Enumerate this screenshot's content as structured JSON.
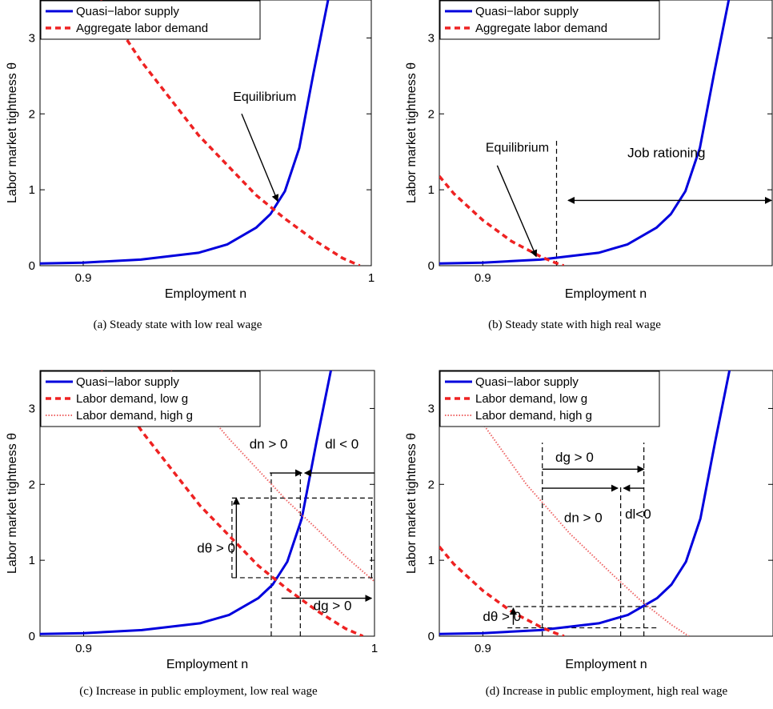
{
  "chart_data": [
    {
      "type": "line",
      "caption": "(a)  Steady state with low real wage",
      "xlabel": "Employment n",
      "ylabel": "Labor market tightness θ",
      "xlim": [
        0.885,
        1.0
      ],
      "ylim": [
        0,
        3.5
      ],
      "xticks": [
        {
          "v": 0.9,
          "label": "0.9"
        },
        {
          "v": 1.0,
          "label": "1"
        }
      ],
      "yticks": [
        0,
        1,
        2,
        3
      ],
      "legend_position": "top-left",
      "series": [
        {
          "name": "Quasi−labor supply",
          "style": "supply",
          "color": "#0000dd",
          "x": [
            0.885,
            0.9,
            0.92,
            0.94,
            0.95,
            0.96,
            0.965,
            0.97,
            0.975,
            0.98,
            0.985
          ],
          "y": [
            0.03,
            0.04,
            0.08,
            0.17,
            0.28,
            0.5,
            0.68,
            0.98,
            1.55,
            2.55,
            3.5
          ]
        },
        {
          "name": "Aggregate labor demand",
          "style": "dashed",
          "color": "#ee2222",
          "x": [
            0.906,
            0.92,
            0.94,
            0.96,
            0.97,
            0.98,
            0.99,
            0.996
          ],
          "y": [
            3.5,
            2.7,
            1.72,
            0.93,
            0.62,
            0.34,
            0.1,
            0.0
          ]
        }
      ],
      "annotations": [
        {
          "text": "Equilibrium",
          "tx": 0.952,
          "ty": 2.17,
          "arrow": {
            "x1": 0.955,
            "y1": 2.0,
            "x2": 0.9675,
            "y2": 0.85
          }
        }
      ]
    },
    {
      "type": "line",
      "caption": "(b)  Steady state with high real wage",
      "xlabel": "Employment n",
      "ylabel": "Labor market tightness θ",
      "xlim": [
        0.885,
        1.0
      ],
      "ylim": [
        0,
        3.5
      ],
      "xticks": [
        {
          "v": 0.9,
          "label": "0.9"
        }
      ],
      "yticks": [
        0,
        1,
        2,
        3
      ],
      "legend_position": "top-left",
      "series": [
        {
          "name": "Quasi−labor supply",
          "style": "supply",
          "color": "#0000dd",
          "x": [
            0.885,
            0.9,
            0.92,
            0.94,
            0.95,
            0.96,
            0.965,
            0.97,
            0.975,
            0.98,
            0.985
          ],
          "y": [
            0.03,
            0.04,
            0.08,
            0.17,
            0.28,
            0.5,
            0.68,
            0.98,
            1.55,
            2.55,
            3.5
          ]
        },
        {
          "name": "Aggregate labor demand",
          "style": "dashed",
          "color": "#ee2222",
          "x": [
            0.885,
            0.89,
            0.9,
            0.91,
            0.92,
            0.925,
            0.928
          ],
          "y": [
            1.18,
            0.95,
            0.6,
            0.32,
            0.12,
            0.04,
            0.0
          ]
        }
      ],
      "annotations": [
        {
          "text": "Equilibrium",
          "tx": 0.901,
          "ty": 1.5,
          "arrow": {
            "x1": 0.905,
            "y1": 1.32,
            "x2": 0.9185,
            "y2": 0.12
          }
        },
        {
          "text": "Job rationing",
          "tx": 0.95,
          "ty": 1.43
        },
        {
          "text": "",
          "darrow": {
            "x1": 0.9295,
            "y1": 0.86,
            "x2": 1.0,
            "y2": 0.86
          }
        }
      ],
      "vlines": [
        {
          "x": 0.9255,
          "y0": 0,
          "y1": 1.65
        }
      ]
    },
    {
      "type": "line",
      "caption": "(c)  Increase in public employment, low real wage",
      "xlabel": "Employment n",
      "ylabel": "Labor market tightness θ",
      "xlim": [
        0.885,
        1.0
      ],
      "ylim": [
        0,
        3.5
      ],
      "xticks": [
        {
          "v": 0.9,
          "label": "0.9"
        },
        {
          "v": 1.0,
          "label": "1"
        }
      ],
      "yticks": [
        0,
        1,
        2,
        3
      ],
      "legend_position": "top-left",
      "series": [
        {
          "name": "Quasi−labor supply",
          "style": "supply",
          "color": "#0000dd",
          "x": [
            0.885,
            0.9,
            0.92,
            0.94,
            0.95,
            0.96,
            0.965,
            0.97,
            0.975,
            0.98,
            0.985
          ],
          "y": [
            0.03,
            0.04,
            0.08,
            0.17,
            0.28,
            0.5,
            0.68,
            0.98,
            1.55,
            2.55,
            3.5
          ]
        },
        {
          "name": "Labor demand, low g",
          "style": "dashed",
          "color": "#ee2222",
          "x": [
            0.906,
            0.92,
            0.94,
            0.96,
            0.97,
            0.98,
            0.99,
            0.996
          ],
          "y": [
            3.5,
            2.7,
            1.72,
            0.93,
            0.62,
            0.34,
            0.1,
            0.0
          ]
        },
        {
          "name": "Labor demand, high g",
          "style": "dotted",
          "color": "#ee6666",
          "x": [
            0.93,
            0.95,
            0.97,
            0.98,
            0.99,
            1.0
          ],
          "y": [
            3.5,
            2.6,
            1.78,
            1.42,
            1.05,
            0.72
          ]
        }
      ],
      "annotations": [
        {
          "text": "dn > 0",
          "tx": 0.957,
          "ty": 2.47
        },
        {
          "text": "dl < 0",
          "tx": 0.983,
          "ty": 2.47
        },
        {
          "text": "dθ > 0",
          "tx": 0.939,
          "ty": 1.1
        },
        {
          "text": "dg > 0",
          "tx": 0.979,
          "ty": 0.34
        },
        {
          "text": "",
          "arrow": {
            "x1": 0.964,
            "y1": 2.15,
            "x2": 0.975,
            "y2": 2.15
          }
        },
        {
          "text": "",
          "arrow": {
            "x1": 1.0,
            "y1": 2.15,
            "x2": 0.976,
            "y2": 2.15
          }
        },
        {
          "text": "",
          "arrow": {
            "x1": 0.9525,
            "y1": 0.77,
            "x2": 0.9525,
            "y2": 1.82
          }
        },
        {
          "text": "",
          "arrow": {
            "x1": 0.968,
            "y1": 0.5,
            "x2": 0.999,
            "y2": 0.5
          }
        }
      ],
      "vlines": [
        {
          "x": 0.9645,
          "y0": 0,
          "y1": 2.15
        },
        {
          "x": 0.9745,
          "y0": 0,
          "y1": 2.15
        }
      ],
      "hlines": [
        {
          "y": 1.82,
          "x0": 0.951,
          "x1": 1.0
        },
        {
          "y": 0.77,
          "x0": 0.951,
          "x1": 1.0
        }
      ],
      "vlines_extra": [
        {
          "x": 0.951,
          "y0": 0.77,
          "y1": 1.82
        },
        {
          "x": 0.999,
          "y0": 0.77,
          "y1": 1.82
        }
      ]
    },
    {
      "type": "line",
      "caption": "(d)  Increase in public employment, high real wage",
      "xlabel": "Employment n",
      "ylabel": "Labor market tightness θ",
      "xlim": [
        0.885,
        1.0
      ],
      "ylim": [
        0,
        3.5
      ],
      "xticks": [
        {
          "v": 0.9,
          "label": "0.9"
        }
      ],
      "yticks": [
        0,
        1,
        2,
        3
      ],
      "legend_position": "top-left",
      "series": [
        {
          "name": "Quasi−labor supply",
          "style": "supply",
          "color": "#0000dd",
          "x": [
            0.885,
            0.9,
            0.92,
            0.94,
            0.95,
            0.96,
            0.965,
            0.97,
            0.975,
            0.98,
            0.985
          ],
          "y": [
            0.03,
            0.04,
            0.08,
            0.17,
            0.28,
            0.5,
            0.68,
            0.98,
            1.55,
            2.55,
            3.5
          ]
        },
        {
          "name": "Labor demand, low g",
          "style": "dashed",
          "color": "#ee2222",
          "x": [
            0.885,
            0.89,
            0.9,
            0.91,
            0.92,
            0.925,
            0.928
          ],
          "y": [
            1.18,
            0.95,
            0.6,
            0.32,
            0.12,
            0.04,
            0.0
          ]
        },
        {
          "name": "Labor demand, high g",
          "style": "dotted",
          "color": "#ee6666",
          "x": [
            0.9,
            0.915,
            0.93,
            0.945,
            0.955,
            0.965,
            0.971
          ],
          "y": [
            2.8,
            2.0,
            1.35,
            0.8,
            0.45,
            0.15,
            0.0
          ]
        }
      ],
      "annotations": [
        {
          "text": "dg > 0",
          "tx": 0.925,
          "ty": 2.3
        },
        {
          "text": "dn > 0",
          "tx": 0.928,
          "ty": 1.5
        },
        {
          "text": "dl<0",
          "tx": 0.949,
          "ty": 1.55
        },
        {
          "text": "dθ > 0",
          "tx": 0.9,
          "ty": 0.2
        },
        {
          "text": "",
          "arrow": {
            "x1": 0.9205,
            "y1": 2.2,
            "x2": 0.9555,
            "y2": 2.2
          }
        },
        {
          "text": "",
          "arrow": {
            "x1": 0.9205,
            "y1": 1.95,
            "x2": 0.9465,
            "y2": 1.95
          }
        },
        {
          "text": "",
          "arrow": {
            "x1": 0.9555,
            "y1": 1.95,
            "x2": 0.9485,
            "y2": 1.95
          }
        },
        {
          "text": "",
          "arrow": {
            "x1": 0.9105,
            "y1": 0.15,
            "x2": 0.9105,
            "y2": 0.37
          }
        }
      ],
      "vlines": [
        {
          "x": 0.9205,
          "y0": 0,
          "y1": 2.55
        },
        {
          "x": 0.9475,
          "y0": 0,
          "y1": 2.0
        },
        {
          "x": 0.9555,
          "y0": 0,
          "y1": 2.55
        }
      ],
      "hlines": [
        {
          "y": 0.39,
          "x0": 0.9085,
          "x1": 0.96
        },
        {
          "y": 0.11,
          "x0": 0.9085,
          "x1": 0.96
        }
      ]
    }
  ]
}
